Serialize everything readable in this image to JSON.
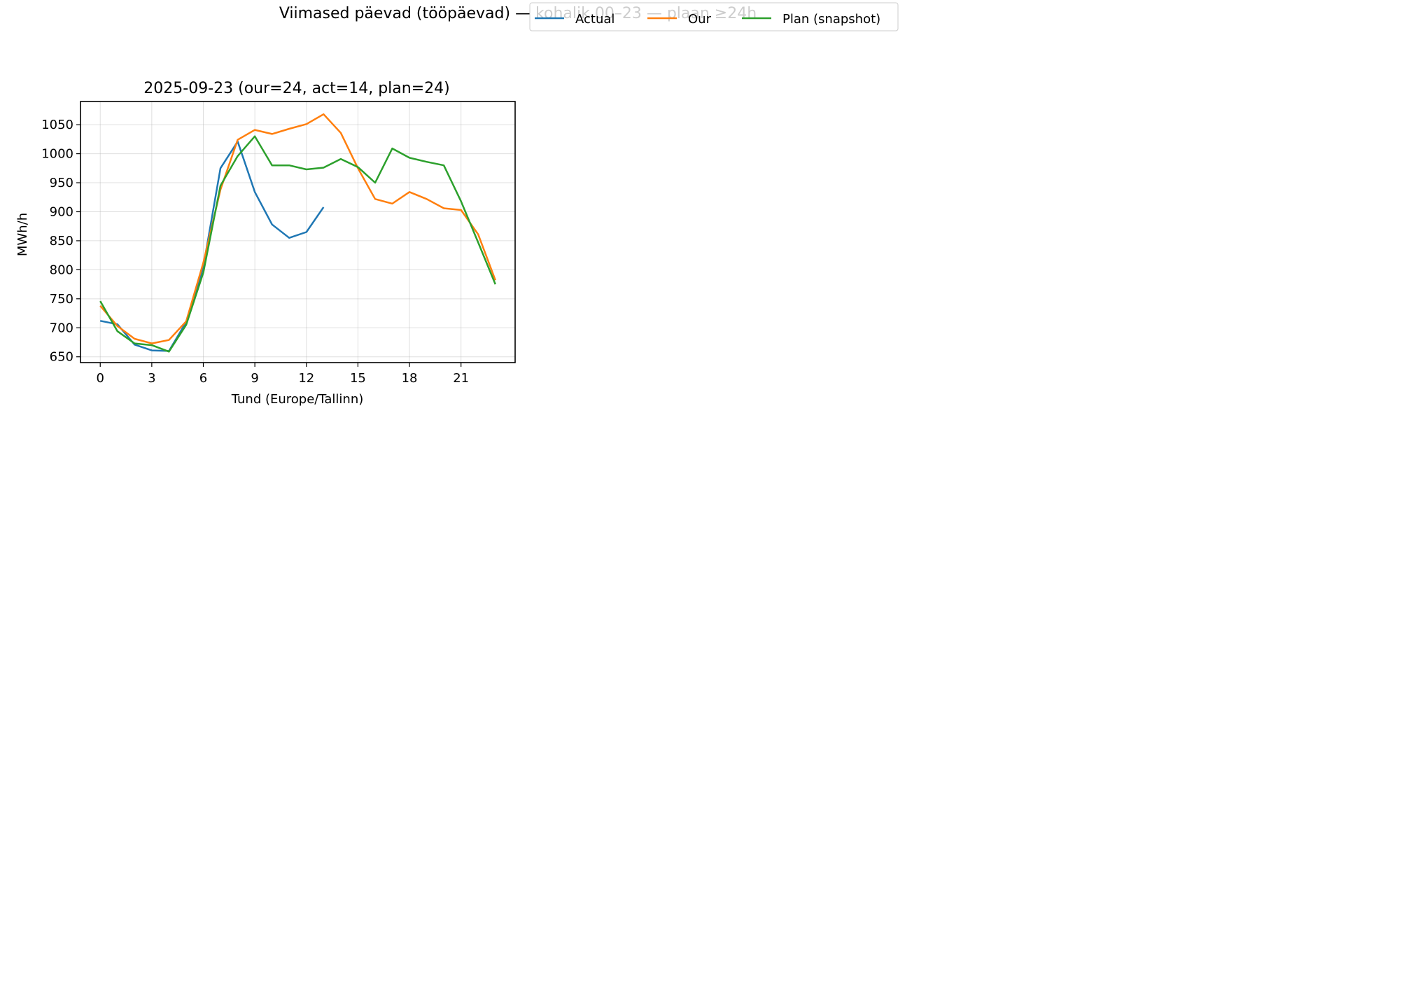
{
  "figure": {
    "suptitle": "Viimased päevad (tööpäevad) — kohalik 00–23 — plaan ≥24h"
  },
  "chart_data": {
    "type": "line",
    "title": "2025-09-23  (our=24, act=14, plan=24)",
    "xlabel": "Tund (Europe/Tallinn)",
    "ylabel": "MWh/h",
    "xlim": [
      -1.15,
      24.15
    ],
    "ylim": [
      640,
      1090
    ],
    "xticks": [
      0,
      3,
      6,
      9,
      12,
      15,
      18,
      21
    ],
    "yticks": [
      650,
      700,
      750,
      800,
      850,
      900,
      950,
      1000,
      1050
    ],
    "grid": true,
    "legend": {
      "placement": "top-center",
      "columns": 3
    },
    "series": [
      {
        "name": "Actual",
        "color": "#1f77b4",
        "x": [
          0,
          1,
          2,
          3,
          4,
          5,
          6,
          7,
          8,
          9,
          10,
          11,
          12,
          13
        ],
        "values": [
          712,
          706,
          671,
          661,
          660,
          710,
          805,
          975,
          1021,
          934,
          878,
          855,
          865,
          908
        ]
      },
      {
        "name": "Our",
        "color": "#ff7f0e",
        "x": [
          0,
          1,
          2,
          3,
          4,
          5,
          6,
          7,
          8,
          9,
          10,
          11,
          12,
          13,
          14,
          15,
          16,
          17,
          18,
          19,
          20,
          21,
          22,
          23
        ],
        "values": [
          738,
          703,
          681,
          673,
          679,
          711,
          812,
          938,
          1024,
          1041,
          1034,
          1043,
          1051,
          1068,
          1036,
          975,
          922,
          914,
          934,
          922,
          906,
          903,
          861,
          782
        ]
      },
      {
        "name": "Plan (snapshot)",
        "color": "#2ca02c",
        "x": [
          0,
          1,
          2,
          3,
          4,
          5,
          6,
          7,
          8,
          9,
          10,
          11,
          12,
          13,
          14,
          15,
          16,
          17,
          18,
          19,
          20,
          21,
          22,
          23
        ],
        "values": [
          746,
          694,
          673,
          670,
          659,
          705,
          795,
          945,
          996,
          1030,
          980,
          980,
          973,
          976,
          991,
          977,
          950,
          1009,
          993,
          986,
          980,
          918,
          847,
          775
        ]
      }
    ]
  }
}
